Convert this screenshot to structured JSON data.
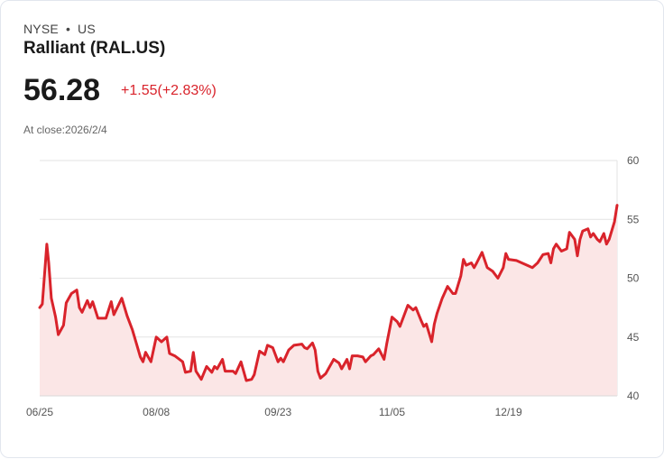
{
  "header": {
    "exchange": "NYSE",
    "separator": "•",
    "region": "US",
    "name": "Ralliant (RAL.US)",
    "price": "56.28",
    "change": "+1.55(+2.83%)",
    "close_label": "At close:2026/2/4"
  },
  "colors": {
    "line": "#d9232b",
    "fill": "#fbe6e6",
    "grid": "#e3e3e3"
  },
  "chart_data": {
    "type": "area",
    "title": "Ralliant (RAL.US)",
    "xlabel": "",
    "ylabel": "",
    "x_unit": "days since 06/25",
    "xlim": [
      0,
      218
    ],
    "ylim": [
      40,
      60
    ],
    "yticks": [
      40,
      45,
      50,
      55,
      60
    ],
    "xticks": [
      {
        "x": 0,
        "label": "06/25"
      },
      {
        "x": 44,
        "label": "08/08"
      },
      {
        "x": 90,
        "label": "09/23"
      },
      {
        "x": 133,
        "label": "11/05"
      },
      {
        "x": 177,
        "label": "12/19"
      }
    ],
    "grid": true,
    "y_axis_side": "right",
    "points": [
      [
        0,
        47.5
      ],
      [
        1,
        47.8
      ],
      [
        2.7,
        52.9
      ],
      [
        3.4,
        51.3
      ],
      [
        4.4,
        48.3
      ],
      [
        6,
        46.7
      ],
      [
        7,
        45.2
      ],
      [
        9,
        46
      ],
      [
        10,
        47.9
      ],
      [
        12,
        48.7
      ],
      [
        14,
        49.0
      ],
      [
        15,
        47.5
      ],
      [
        16,
        47.1
      ],
      [
        18,
        48.1
      ],
      [
        19,
        47.5
      ],
      [
        20,
        48.0
      ],
      [
        22,
        46.6
      ],
      [
        25,
        46.6
      ],
      [
        27,
        48.0
      ],
      [
        28,
        46.9
      ],
      [
        31,
        48.3
      ],
      [
        33,
        46.8
      ],
      [
        35,
        45.6
      ],
      [
        38,
        43.3
      ],
      [
        39,
        42.9
      ],
      [
        40,
        43.7
      ],
      [
        42,
        42.9
      ],
      [
        44,
        45.0
      ],
      [
        46,
        44.6
      ],
      [
        48,
        45.0
      ],
      [
        49,
        43.6
      ],
      [
        51,
        43.4
      ],
      [
        54,
        42.9
      ],
      [
        55,
        42.0
      ],
      [
        57,
        42.1
      ],
      [
        58,
        43.7
      ],
      [
        59,
        42.1
      ],
      [
        61,
        41.4
      ],
      [
        63,
        42.5
      ],
      [
        65,
        42.0
      ],
      [
        66,
        42.5
      ],
      [
        67,
        42.3
      ],
      [
        69,
        43.1
      ],
      [
        70,
        42.1
      ],
      [
        73,
        42.1
      ],
      [
        74,
        41.9
      ],
      [
        76,
        42.9
      ],
      [
        78,
        41.3
      ],
      [
        80,
        41.4
      ],
      [
        81,
        41.8
      ],
      [
        83,
        43.8
      ],
      [
        85,
        43.5
      ],
      [
        86,
        44.3
      ],
      [
        88,
        44.1
      ],
      [
        90,
        42.9
      ],
      [
        91,
        43.2
      ],
      [
        92,
        42.9
      ],
      [
        94,
        43.9
      ],
      [
        96,
        44.3
      ],
      [
        99,
        44.4
      ],
      [
        100,
        44.1
      ],
      [
        101,
        44.0
      ],
      [
        103,
        44.5
      ],
      [
        104,
        43.9
      ],
      [
        105,
        42.1
      ],
      [
        106,
        41.5
      ],
      [
        108,
        41.9
      ],
      [
        111,
        43.1
      ],
      [
        113,
        42.8
      ],
      [
        114,
        42.3
      ],
      [
        116,
        43.1
      ],
      [
        117,
        42.3
      ],
      [
        118,
        43.4
      ],
      [
        120,
        43.4
      ],
      [
        122,
        43.3
      ],
      [
        123,
        42.9
      ],
      [
        125,
        43.4
      ],
      [
        126,
        43.5
      ],
      [
        128,
        44.0
      ],
      [
        130,
        43.1
      ],
      [
        131,
        44.4
      ],
      [
        133,
        46.7
      ],
      [
        135,
        46.3
      ],
      [
        136,
        45.9
      ],
      [
        139,
        47.7
      ],
      [
        141,
        47.3
      ],
      [
        142,
        47.5
      ],
      [
        144,
        46.4
      ],
      [
        145,
        45.9
      ],
      [
        146,
        46.1
      ],
      [
        148,
        44.6
      ],
      [
        149,
        46.1
      ],
      [
        150,
        47.0
      ],
      [
        152,
        48.3
      ],
      [
        154,
        49.3
      ],
      [
        156,
        48.7
      ],
      [
        157,
        48.7
      ],
      [
        159,
        50.2
      ],
      [
        160,
        51.6
      ],
      [
        161,
        51.1
      ],
      [
        163,
        51.3
      ],
      [
        164,
        50.9
      ],
      [
        165,
        51.3
      ],
      [
        167,
        52.2
      ],
      [
        169,
        50.9
      ],
      [
        171,
        50.6
      ],
      [
        173,
        50.0
      ],
      [
        175,
        50.9
      ],
      [
        176,
        52.1
      ],
      [
        177,
        51.6
      ],
      [
        180,
        51.5
      ],
      [
        182,
        51.3
      ],
      [
        184,
        51.1
      ],
      [
        186,
        50.9
      ],
      [
        188,
        51.3
      ],
      [
        190,
        52.0
      ],
      [
        192,
        52.1
      ],
      [
        193,
        51.3
      ],
      [
        194,
        52.5
      ],
      [
        195,
        52.9
      ],
      [
        197,
        52.3
      ],
      [
        199,
        52.5
      ],
      [
        200,
        53.9
      ],
      [
        202,
        53.3
      ],
      [
        203,
        51.9
      ],
      [
        204,
        53.3
      ],
      [
        205,
        54.0
      ],
      [
        207,
        54.2
      ],
      [
        208,
        53.5
      ],
      [
        209,
        53.8
      ],
      [
        210.5,
        53.3
      ],
      [
        211.5,
        53.1
      ],
      [
        213,
        53.8
      ],
      [
        214,
        52.9
      ],
      [
        215,
        53.3
      ],
      [
        217,
        54.8
      ],
      [
        218,
        56.2
      ]
    ]
  }
}
